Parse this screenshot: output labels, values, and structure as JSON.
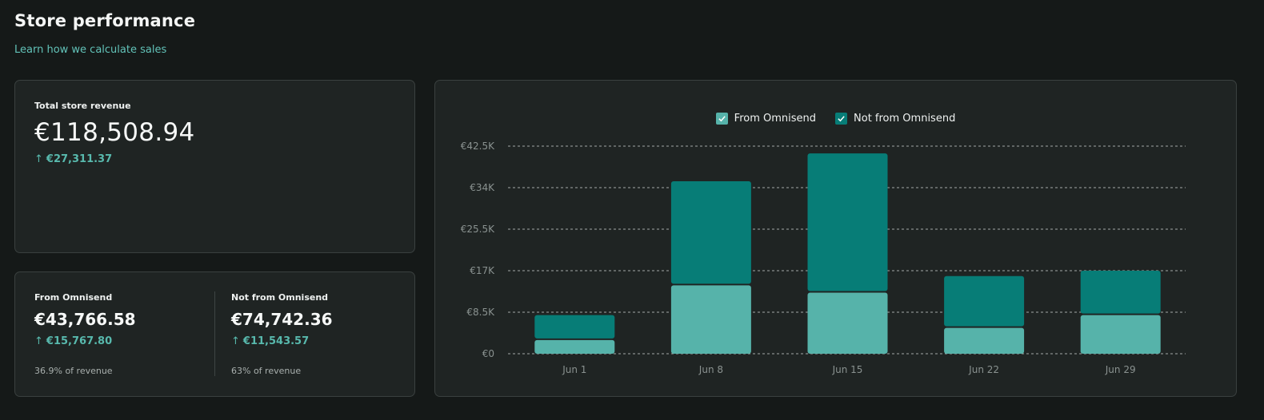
{
  "header": {
    "title": "Store performance",
    "learn_link": "Learn how we calculate sales"
  },
  "total_card": {
    "label": "Total store revenue",
    "value": "€118,508.94",
    "delta": "€27,311.37",
    "delta_icon": "arrow-up-icon"
  },
  "split_card": {
    "from": {
      "label": "From Omnisend",
      "value": "€43,766.58",
      "delta": "€15,767.80",
      "share": "36.9% of revenue"
    },
    "not_from": {
      "label": "Not from Omnisend",
      "value": "€74,742.36",
      "delta": "€11,543.57",
      "share": "63% of revenue"
    }
  },
  "colors": {
    "accent": "#62c2b8",
    "from_omnisend": "#56b3aa",
    "not_from_omnisend": "#077d77",
    "grid": "#cfd5d3"
  },
  "chart_data": {
    "type": "bar",
    "stacked": true,
    "categories": [
      "Jun 1",
      "Jun 8",
      "Jun 15",
      "Jun 22",
      "Jun 29"
    ],
    "series": [
      {
        "name": "From Omnisend",
        "values": [
          2800,
          14000,
          12500,
          5300,
          7900
        ],
        "color": "#56b3aa"
      },
      {
        "name": "Not from Omnisend",
        "values": [
          5100,
          21300,
          28500,
          10600,
          9100
        ],
        "color": "#077d77"
      }
    ],
    "yticks": [
      "€0",
      "€8.5K",
      "€17K",
      "€25.5K",
      "€34K",
      "€42.5K"
    ],
    "ylim": [
      0,
      42500
    ],
    "grid": true,
    "legend": "top-center"
  }
}
